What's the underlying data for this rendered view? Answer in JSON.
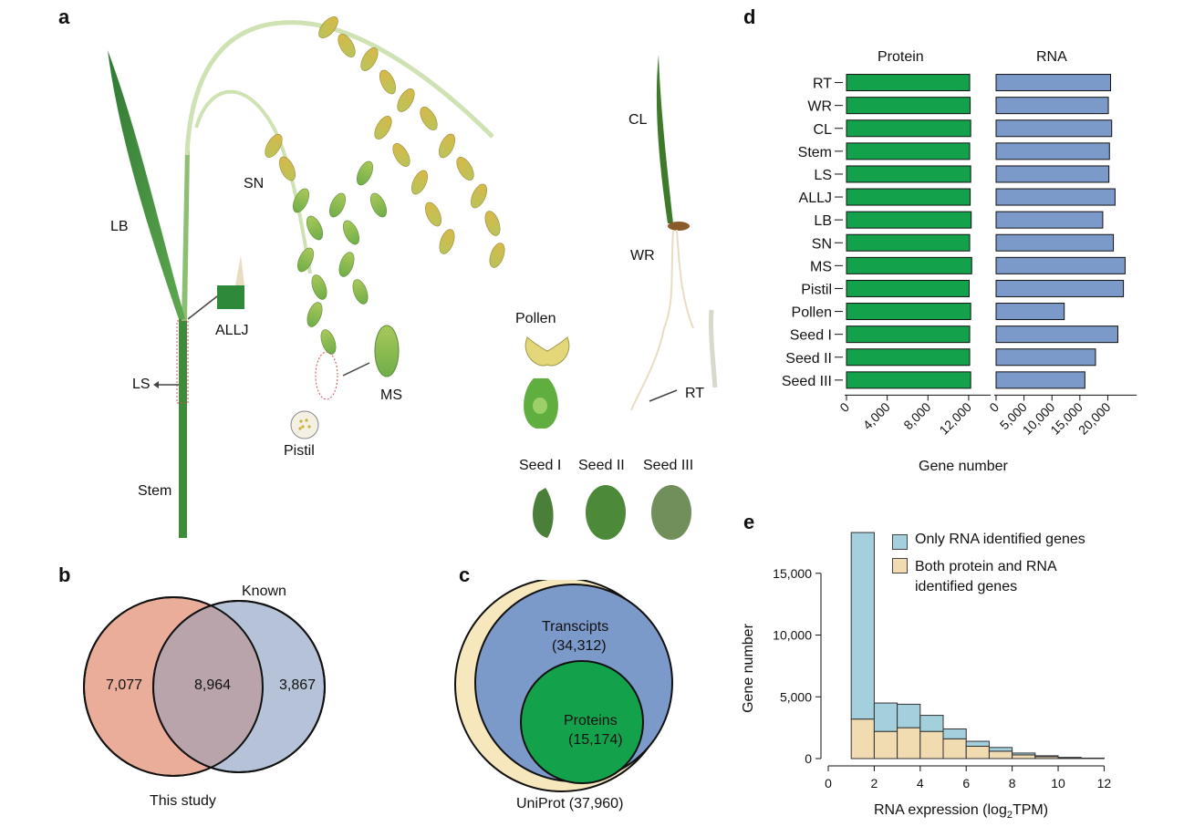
{
  "panels": {
    "a": "a",
    "b": "b",
    "c": "c",
    "d": "d",
    "e": "e"
  },
  "panel_a": {
    "labels": {
      "lb": "LB",
      "allj": "ALLJ",
      "ls": "LS",
      "stem": "Stem",
      "sn": "SN",
      "pistil": "Pistil",
      "ms": "MS",
      "pollen": "Pollen",
      "cl": "CL",
      "wr": "WR",
      "rt": "RT",
      "seed1": "Seed I",
      "seed2": "Seed II",
      "seed3": "Seed III"
    }
  },
  "panel_b": {
    "left_value": "7,077",
    "overlap_value": "8,964",
    "right_value": "3,867",
    "left_label": "This study",
    "right_label": "Known",
    "colors": {
      "left": "#e9ad9a",
      "right": "#b5c2d7",
      "overlap": "#b8a4aa"
    }
  },
  "panel_c": {
    "outer_label": "UniProt (37,960)",
    "middle_label": "Transcipts",
    "middle_value": "(34,312)",
    "inner_label": "Proteins",
    "inner_value": "(15,174)",
    "colors": {
      "outer": "#f6e7bd",
      "middle": "#7b99c9",
      "inner": "#13a24b"
    }
  },
  "chart_data": [
    {
      "type": "bar",
      "orientation": "horizontal",
      "categories": [
        "RT",
        "WR",
        "CL",
        "Stem",
        "LS",
        "ALLJ",
        "LB",
        "SN",
        "MS",
        "Pistil",
        "Pollen",
        "Seed I",
        "Seed II",
        "Seed III"
      ],
      "series": [
        {
          "name": "Protein",
          "color": "#13a24b",
          "values": [
            12100,
            12150,
            12200,
            12100,
            12200,
            12150,
            12250,
            12100,
            12300,
            12050,
            12200,
            12100,
            12100,
            12200
          ]
        },
        {
          "name": "RNA",
          "color": "#7b99c9",
          "values": [
            20500,
            20100,
            20700,
            20300,
            20200,
            21300,
            19100,
            21000,
            23100,
            22800,
            12200,
            21800,
            17800,
            15900
          ]
        }
      ],
      "xlabel": "Gene number",
      "protein_ticks": [
        0,
        4000,
        8000,
        12000
      ],
      "protein_tick_labels": [
        "0",
        "4,000",
        "8,000",
        "12,000"
      ],
      "protein_xlim": [
        0,
        13800
      ],
      "rna_ticks": [
        0,
        5000,
        10000,
        15000,
        20000
      ],
      "rna_tick_labels": [
        "0",
        "5,000",
        "10,000",
        "15,000",
        "20,000"
      ],
      "rna_xlim": [
        0,
        24500
      ]
    },
    {
      "type": "bar",
      "stacked": true,
      "bins": [
        [
          1,
          2
        ],
        [
          2,
          3
        ],
        [
          3,
          4
        ],
        [
          4,
          5
        ],
        [
          5,
          6
        ],
        [
          6,
          7
        ],
        [
          7,
          8
        ],
        [
          8,
          9
        ],
        [
          9,
          10
        ],
        [
          10,
          11
        ],
        [
          11,
          12
        ]
      ],
      "series": [
        {
          "name": "Both protein and RNA\nidentified genes",
          "color": "#f1dbb1",
          "values": [
            3200,
            2200,
            2500,
            2200,
            1600,
            1000,
            600,
            300,
            150,
            60,
            20
          ]
        },
        {
          "name": "Only RNA identified genes",
          "color": "#a3d0dc",
          "values": [
            15100,
            2300,
            1900,
            1300,
            800,
            400,
            300,
            150,
            80,
            40,
            20
          ]
        }
      ],
      "legend": [
        "Only RNA identified genes",
        "Both protein and RNA identified genes"
      ],
      "legend_lines": [
        "Only RNA identified genes",
        "Both protein and RNA",
        "identified genes"
      ],
      "xlabel": "RNA expression (log₂TPM)",
      "ylabel": "Gene number",
      "xlim": [
        0,
        12.3
      ],
      "ylim": [
        0,
        18600
      ],
      "x_ticks": [
        0,
        2,
        4,
        6,
        8,
        10,
        12
      ],
      "x_tick_labels": [
        "0",
        "2",
        "4",
        "6",
        "8",
        "10",
        "12"
      ],
      "y_ticks": [
        0,
        5000,
        10000,
        15000
      ],
      "y_tick_labels": [
        "0",
        "5,000",
        "10,000",
        "15,000"
      ],
      "legend_position": "top-right"
    }
  ]
}
